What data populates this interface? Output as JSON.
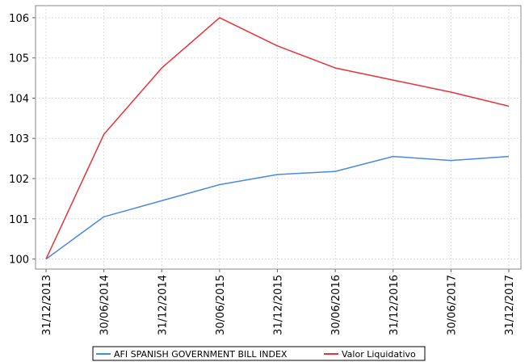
{
  "chart_data": {
    "type": "line",
    "x": [
      "31/12/2013",
      "30/06/2014",
      "31/12/2014",
      "30/06/2015",
      "31/12/2015",
      "30/06/2016",
      "31/12/2016",
      "30/06/2017",
      "31/12/2017"
    ],
    "series": [
      {
        "name": "AFI SPANISH GOVERNMENT BILL INDEX",
        "color": "#4a88e8",
        "values": [
          100.0,
          101.05,
          101.45,
          101.85,
          102.1,
          102.18,
          102.55,
          102.45,
          102.55
        ]
      },
      {
        "name": "Valor Liquidativo",
        "color": "#e8333a",
        "values": [
          100.0,
          103.1,
          104.75,
          106.0,
          105.3,
          104.75,
          104.45,
          104.15,
          103.8
        ]
      }
    ],
    "yticks": [
      100,
      101,
      102,
      103,
      104,
      105,
      106
    ],
    "ylim": [
      99.75,
      106.3
    ],
    "grid": true,
    "legend_position": "bottom-center"
  }
}
